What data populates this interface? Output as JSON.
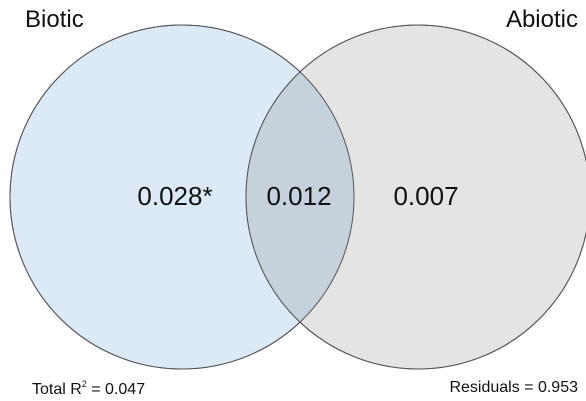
{
  "sets": {
    "biotic": {
      "label": "Biotic",
      "color": "#dbeaf6"
    },
    "abiotic": {
      "label": "Abiotic",
      "color": "#e4e4e4"
    },
    "overlap_color": "#c6d2db",
    "outline_color": "#555555"
  },
  "regions": {
    "biotic_only": "0.028*",
    "shared": "0.012",
    "abiotic_only": "0.007"
  },
  "footer": {
    "total_prefix": "Total R",
    "total_sup": "2",
    "total_suffix": " = 0.047",
    "residuals": "Residuals = 0.953"
  }
}
